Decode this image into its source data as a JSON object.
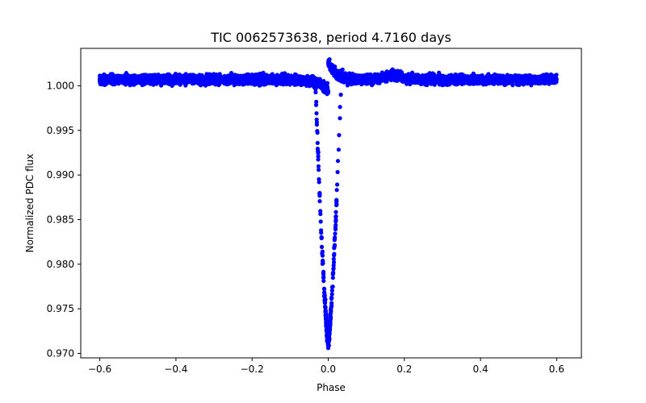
{
  "chart_data": {
    "type": "scatter",
    "title": "TIC 0062573638, period 4.7160 days",
    "xlabel": "Phase",
    "ylabel": "Normalized PDC flux",
    "xlim": [
      -0.65,
      0.665
    ],
    "ylim": [
      0.9695,
      1.0042
    ],
    "xticks": [
      -0.6,
      -0.4,
      -0.2,
      0.0,
      0.2,
      0.4,
      0.6
    ],
    "xtick_labels": [
      "−0.6",
      "−0.4",
      "−0.2",
      "0.0",
      "0.2",
      "0.4",
      "0.6"
    ],
    "yticks": [
      0.97,
      0.975,
      0.98,
      0.985,
      0.99,
      0.995,
      1.0
    ],
    "ytick_labels": [
      "0.970",
      "0.975",
      "0.980",
      "0.985",
      "0.990",
      "0.995",
      "1.000"
    ],
    "marker_color": "#0000ff",
    "grid": false,
    "series": [
      {
        "name": "PDC flux",
        "description": "phase-folded light curve: baseline ~1.0007 with scatter ~0.0005 from phase -0.6 to 0.6, transit dip centered at phase ~0.0 reaching minimum ~0.9715",
        "baseline": 1.0007,
        "baseline_scatter": 0.0005,
        "x_range": [
          -0.6,
          0.6
        ],
        "dip_center": 0.0,
        "dip_min": 0.9715,
        "key_points": [
          {
            "x": -0.6,
            "y": 1.0008
          },
          {
            "x": -0.4,
            "y": 1.0008
          },
          {
            "x": -0.2,
            "y": 1.0007
          },
          {
            "x": -0.05,
            "y": 0.9995
          },
          {
            "x": -0.02,
            "y": 0.985
          },
          {
            "x": -0.01,
            "y": 0.976
          },
          {
            "x": 0.0,
            "y": 0.9715
          },
          {
            "x": 0.01,
            "y": 0.976
          },
          {
            "x": 0.02,
            "y": 0.985
          },
          {
            "x": 0.03,
            "y": 1.0028
          },
          {
            "x": 0.05,
            "y": 1.0012
          },
          {
            "x": 0.17,
            "y": 1.0012
          },
          {
            "x": 0.33,
            "y": 0.9991
          },
          {
            "x": 0.6,
            "y": 1.0007
          }
        ]
      }
    ]
  }
}
